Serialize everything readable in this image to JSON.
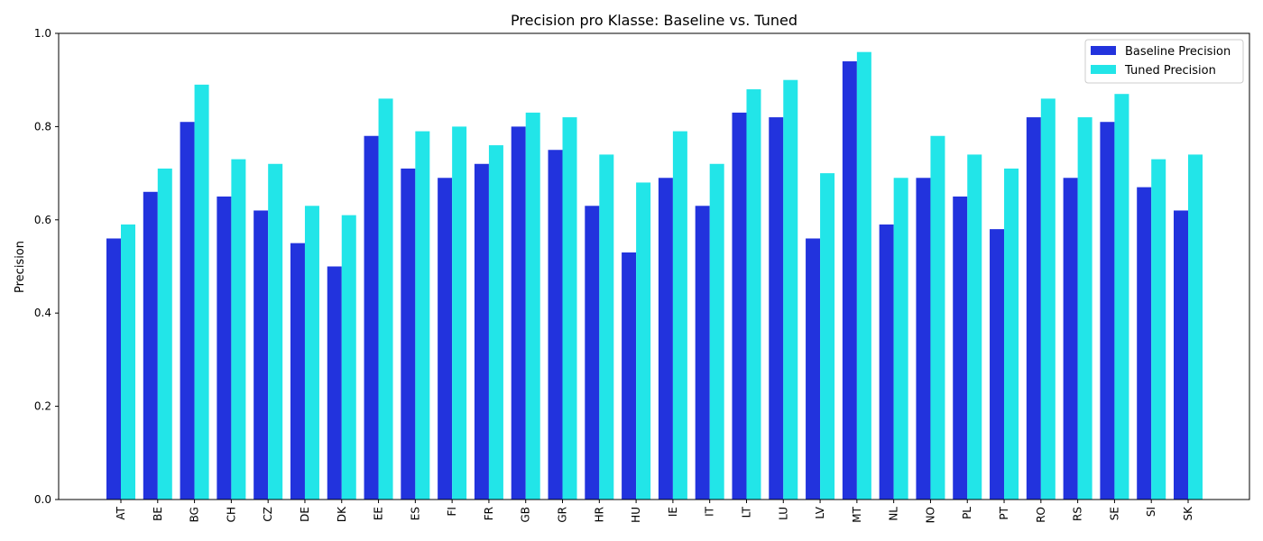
{
  "chart_data": {
    "type": "bar",
    "title": "Precision pro Klasse: Baseline vs. Tuned",
    "xlabel": "",
    "ylabel": "Precision",
    "ylim": [
      0,
      1.0
    ],
    "yticks": [
      "0.0",
      "0.2",
      "0.4",
      "0.6",
      "0.8",
      "1.0"
    ],
    "grid": false,
    "legend_position": "top-right",
    "categories": [
      "AT",
      "BE",
      "BG",
      "CH",
      "CZ",
      "DE",
      "DK",
      "EE",
      "ES",
      "FI",
      "FR",
      "GB",
      "GR",
      "HR",
      "HU",
      "IE",
      "IT",
      "LT",
      "LU",
      "LV",
      "MT",
      "NL",
      "NO",
      "PL",
      "PT",
      "RO",
      "RS",
      "SE",
      "SI",
      "SK"
    ],
    "series": [
      {
        "name": "Baseline Precision",
        "color": "#2233dd",
        "values": [
          0.56,
          0.66,
          0.81,
          0.65,
          0.62,
          0.55,
          0.5,
          0.78,
          0.71,
          0.69,
          0.72,
          0.8,
          0.75,
          0.63,
          0.53,
          0.69,
          0.63,
          0.83,
          0.82,
          0.56,
          0.94,
          0.59,
          0.69,
          0.65,
          0.58,
          0.82,
          0.69,
          0.81,
          0.67,
          0.62
        ]
      },
      {
        "name": "Tuned Precision",
        "color": "#22e5e8",
        "values": [
          0.59,
          0.71,
          0.89,
          0.73,
          0.72,
          0.63,
          0.61,
          0.86,
          0.79,
          0.8,
          0.76,
          0.83,
          0.82,
          0.74,
          0.68,
          0.79,
          0.72,
          0.88,
          0.9,
          0.7,
          0.96,
          0.69,
          0.78,
          0.74,
          0.71,
          0.86,
          0.82,
          0.87,
          0.73,
          0.74
        ]
      }
    ]
  }
}
